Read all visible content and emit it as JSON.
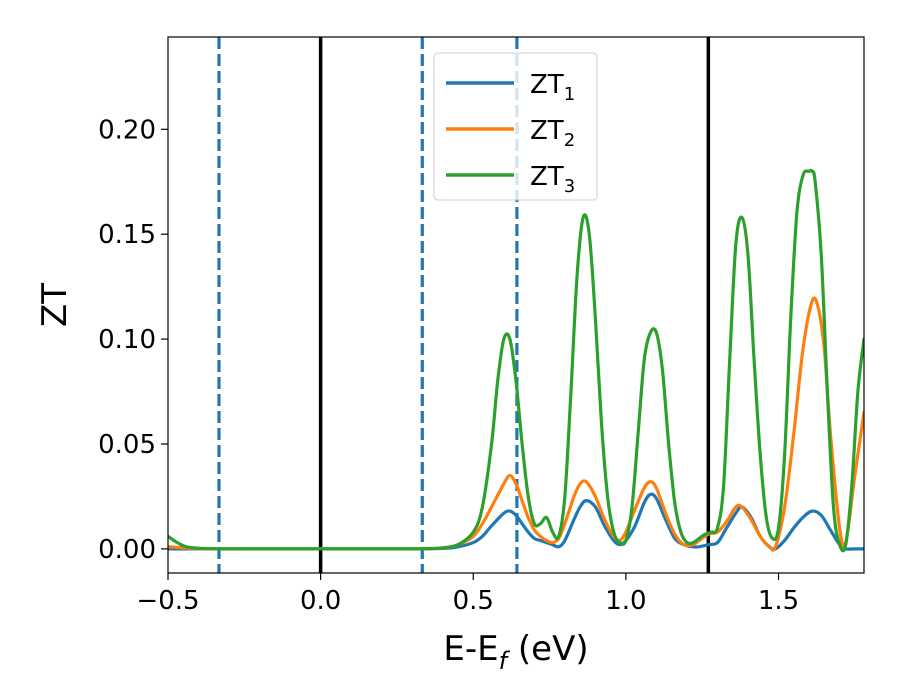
{
  "chart_data": {
    "type": "line",
    "xlabel": "E-E",
    "xlabel_sub": "f",
    "xlabel_unit": " (eV)",
    "ylabel": "ZT",
    "xlim": [
      -0.5,
      1.78
    ],
    "ylim": [
      -0.0115,
      0.244
    ],
    "xticks": [
      -0.5,
      0.0,
      0.5,
      1.0,
      1.5
    ],
    "xtick_labels": [
      "−0.5",
      "0.0",
      "0.5",
      "1.0",
      "1.5"
    ],
    "yticks": [
      0.0,
      0.05,
      0.1,
      0.15,
      0.2
    ],
    "ytick_labels": [
      "0.00",
      "0.05",
      "0.10",
      "0.15",
      "0.20"
    ],
    "grid": false,
    "legend_position": "top-center",
    "vlines": [
      {
        "x": -0.333,
        "style": "dashed",
        "color": "#1f77b4"
      },
      {
        "x": 0.0,
        "style": "solid",
        "color": "#000000"
      },
      {
        "x": 0.333,
        "style": "dashed",
        "color": "#1f77b4"
      },
      {
        "x": 0.643,
        "style": "dashed",
        "color": "#1f77b4"
      },
      {
        "x": 1.27,
        "style": "solid",
        "color": "#000000"
      }
    ],
    "series": [
      {
        "name": "ZT",
        "sub": "1",
        "color": "#1f77b4",
        "x": [
          -0.5,
          -0.45,
          -0.4,
          -0.3,
          0.0,
          0.3,
          0.4,
          0.45,
          0.5,
          0.53,
          0.56,
          0.6,
          0.62,
          0.64,
          0.66,
          0.68,
          0.7,
          0.72,
          0.74,
          0.76,
          0.78,
          0.8,
          0.83,
          0.85,
          0.87,
          0.9,
          0.93,
          0.96,
          0.98,
          1.0,
          1.03,
          1.06,
          1.08,
          1.1,
          1.13,
          1.16,
          1.19,
          1.22,
          1.24,
          1.27,
          1.3,
          1.33,
          1.36,
          1.38,
          1.41,
          1.44,
          1.47,
          1.49,
          1.52,
          1.55,
          1.58,
          1.61,
          1.64,
          1.67,
          1.7,
          1.72,
          1.75,
          1.78
        ],
        "y": [
          0.0,
          0.0,
          0.0,
          0.0,
          0.0,
          0.0,
          0.0002,
          0.001,
          0.003,
          0.006,
          0.011,
          0.017,
          0.018,
          0.016,
          0.012,
          0.008,
          0.005,
          0.004,
          0.003,
          0.002,
          0.001,
          0.004,
          0.014,
          0.02,
          0.023,
          0.02,
          0.011,
          0.004,
          0.002,
          0.004,
          0.011,
          0.022,
          0.026,
          0.024,
          0.014,
          0.005,
          0.002,
          0.001,
          0.001,
          0.002,
          0.003,
          0.01,
          0.017,
          0.02,
          0.015,
          0.006,
          0.001,
          0.0,
          0.004,
          0.01,
          0.015,
          0.018,
          0.016,
          0.009,
          0.002,
          0.0,
          0.0,
          0.0
        ]
      },
      {
        "name": "ZT",
        "sub": "2",
        "color": "#ff7f0e",
        "x": [
          -0.5,
          -0.45,
          -0.4,
          -0.3,
          0.0,
          0.3,
          0.4,
          0.45,
          0.5,
          0.53,
          0.56,
          0.6,
          0.62,
          0.64,
          0.66,
          0.68,
          0.7,
          0.72,
          0.74,
          0.76,
          0.78,
          0.8,
          0.83,
          0.85,
          0.87,
          0.9,
          0.93,
          0.96,
          0.98,
          1.0,
          1.03,
          1.06,
          1.08,
          1.1,
          1.13,
          1.16,
          1.19,
          1.22,
          1.24,
          1.27,
          1.3,
          1.33,
          1.36,
          1.38,
          1.41,
          1.44,
          1.47,
          1.49,
          1.52,
          1.55,
          1.58,
          1.61,
          1.63,
          1.65,
          1.67,
          1.7,
          1.72,
          1.75,
          1.78
        ],
        "y": [
          0.001,
          0.0005,
          0.0001,
          0.0,
          0.0,
          0.0,
          0.0004,
          0.002,
          0.006,
          0.012,
          0.02,
          0.031,
          0.035,
          0.031,
          0.023,
          0.015,
          0.009,
          0.006,
          0.004,
          0.003,
          0.005,
          0.012,
          0.025,
          0.031,
          0.032,
          0.025,
          0.014,
          0.006,
          0.004,
          0.008,
          0.019,
          0.029,
          0.032,
          0.029,
          0.017,
          0.007,
          0.002,
          0.002,
          0.004,
          0.007,
          0.008,
          0.013,
          0.02,
          0.02,
          0.014,
          0.006,
          0.001,
          0.001,
          0.02,
          0.055,
          0.095,
          0.118,
          0.115,
          0.095,
          0.055,
          0.01,
          0.003,
          0.035,
          0.065
        ]
      },
      {
        "name": "ZT",
        "sub": "3",
        "color": "#2ca02c",
        "x": [
          -0.5,
          -0.47,
          -0.44,
          -0.4,
          -0.35,
          -0.3,
          0.0,
          0.3,
          0.35,
          0.4,
          0.45,
          0.5,
          0.53,
          0.56,
          0.58,
          0.6,
          0.62,
          0.64,
          0.66,
          0.68,
          0.7,
          0.72,
          0.74,
          0.76,
          0.78,
          0.8,
          0.82,
          0.84,
          0.86,
          0.88,
          0.9,
          0.92,
          0.94,
          0.96,
          0.98,
          1.0,
          1.02,
          1.04,
          1.06,
          1.08,
          1.1,
          1.12,
          1.14,
          1.16,
          1.18,
          1.2,
          1.22,
          1.24,
          1.26,
          1.28,
          1.3,
          1.32,
          1.34,
          1.36,
          1.38,
          1.4,
          1.42,
          1.44,
          1.46,
          1.48,
          1.5,
          1.52,
          1.54,
          1.56,
          1.58,
          1.6,
          1.61,
          1.62,
          1.64,
          1.66,
          1.68,
          1.7,
          1.72,
          1.74,
          1.76,
          1.78
        ],
        "y": [
          0.006,
          0.003,
          0.001,
          0.0003,
          0.0,
          0.0,
          0.0,
          0.0,
          0.0001,
          0.0005,
          0.002,
          0.008,
          0.02,
          0.05,
          0.08,
          0.1,
          0.1,
          0.08,
          0.05,
          0.025,
          0.012,
          0.012,
          0.015,
          0.008,
          0.006,
          0.025,
          0.075,
          0.13,
          0.158,
          0.15,
          0.11,
          0.06,
          0.025,
          0.008,
          0.003,
          0.004,
          0.02,
          0.055,
          0.09,
          0.103,
          0.103,
          0.085,
          0.05,
          0.022,
          0.008,
          0.003,
          0.003,
          0.005,
          0.007,
          0.008,
          0.01,
          0.03,
          0.09,
          0.145,
          0.158,
          0.14,
          0.09,
          0.045,
          0.015,
          0.005,
          0.01,
          0.045,
          0.11,
          0.16,
          0.178,
          0.18,
          0.18,
          0.175,
          0.14,
          0.075,
          0.02,
          0.002,
          0.002,
          0.03,
          0.075,
          0.1
        ]
      }
    ]
  }
}
